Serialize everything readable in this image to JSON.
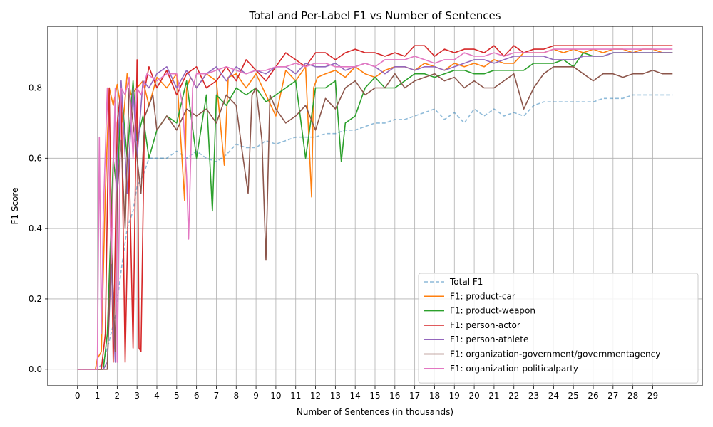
{
  "chart_data": {
    "type": "line",
    "title": "Total and Per-Label F1 vs Number of Sentences",
    "xlabel": "Number of Sentences (in thousands)",
    "ylabel": "F1 Score",
    "xlim": [
      -1.5,
      31.5
    ],
    "ylim": [
      -0.047,
      0.975
    ],
    "xticks": [
      0,
      1,
      2,
      3,
      4,
      5,
      6,
      7,
      8,
      9,
      10,
      11,
      12,
      13,
      14,
      15,
      16,
      17,
      18,
      19,
      20,
      21,
      22,
      23,
      24,
      25,
      26,
      27,
      28,
      29
    ],
    "yticks": [
      0.0,
      0.2,
      0.4,
      0.6,
      0.8
    ],
    "ytick_labels": [
      "0.0",
      "0.2",
      "0.4",
      "0.6",
      "0.8"
    ],
    "grid": true,
    "legend_position": "lower right",
    "series": [
      {
        "name": "Total F1",
        "color": "#1f77b4",
        "dashed": true,
        "opacity": 0.5,
        "x": [
          0,
          0.5,
          1,
          1.3,
          1.6,
          1.9,
          2.2,
          2.5,
          2.8,
          3.0,
          3.3,
          3.6,
          4,
          4.5,
          5,
          5.5,
          6,
          6.5,
          7,
          7.5,
          8,
          8.5,
          9,
          9.5,
          10,
          10.5,
          11,
          11.5,
          12,
          12.5,
          13,
          13.5,
          14,
          14.5,
          15,
          15.5,
          16,
          16.5,
          17,
          17.5,
          18,
          18.5,
          19,
          19.5,
          20,
          20.5,
          21,
          21.5,
          22,
          22.5,
          23,
          23.5,
          24,
          24.5,
          25,
          25.5,
          26,
          26.5,
          27,
          27.5,
          28,
          28.5,
          29,
          29.5,
          30
        ],
        "values": [
          0,
          0,
          0,
          0.02,
          0.08,
          0.15,
          0.28,
          0.4,
          0.45,
          0.52,
          0.55,
          0.6,
          0.6,
          0.6,
          0.62,
          0.6,
          0.62,
          0.6,
          0.59,
          0.61,
          0.64,
          0.63,
          0.63,
          0.65,
          0.64,
          0.65,
          0.66,
          0.66,
          0.66,
          0.67,
          0.67,
          0.68,
          0.68,
          0.69,
          0.7,
          0.7,
          0.71,
          0.71,
          0.72,
          0.73,
          0.74,
          0.71,
          0.73,
          0.7,
          0.74,
          0.72,
          0.74,
          0.72,
          0.73,
          0.72,
          0.75,
          0.76,
          0.76,
          0.76,
          0.76,
          0.76,
          0.76,
          0.77,
          0.77,
          0.77,
          0.78,
          0.78,
          0.78,
          0.78,
          0.78
        ]
      },
      {
        "name": "F1: product-car",
        "color": "#ff7f0e",
        "dashed": false,
        "opacity": 1,
        "x": [
          0,
          0.9,
          1.0,
          1.2,
          1.4,
          1.6,
          1.8,
          2.0,
          2.3,
          2.5,
          2.7,
          3.0,
          3.3,
          3.6,
          4,
          4.5,
          5,
          5.4,
          5.5,
          5.7,
          6,
          6.5,
          7,
          7.4,
          7.6,
          8,
          8.5,
          9,
          9.5,
          10,
          10.5,
          11,
          11.5,
          11.8,
          11.9,
          12.1,
          12.5,
          13,
          13.5,
          14,
          14.5,
          15,
          15.5,
          16,
          16.5,
          17,
          17.5,
          18,
          18.5,
          19,
          19.5,
          20,
          20.5,
          21,
          21.5,
          22,
          22.5,
          23,
          23.5,
          24,
          24.5,
          25,
          25.5,
          26,
          26.5,
          27,
          27.5,
          28,
          28.5,
          29,
          29.5,
          30
        ],
        "values": [
          0,
          0,
          0.03,
          0.05,
          0.5,
          0.8,
          0.75,
          0.81,
          0.7,
          0.84,
          0.78,
          0.8,
          0.82,
          0.75,
          0.83,
          0.8,
          0.84,
          0.48,
          0.8,
          0.83,
          0.8,
          0.84,
          0.82,
          0.58,
          0.83,
          0.84,
          0.8,
          0.84,
          0.78,
          0.72,
          0.85,
          0.82,
          0.86,
          0.49,
          0.8,
          0.83,
          0.84,
          0.85,
          0.83,
          0.86,
          0.84,
          0.83,
          0.85,
          0.86,
          0.86,
          0.85,
          0.87,
          0.86,
          0.85,
          0.87,
          0.86,
          0.87,
          0.86,
          0.88,
          0.87,
          0.87,
          0.9,
          0.9,
          0.9,
          0.91,
          0.9,
          0.91,
          0.9,
          0.91,
          0.9,
          0.91,
          0.91,
          0.9,
          0.91,
          0.91,
          0.9,
          0.9
        ]
      },
      {
        "name": "F1: product-weapon",
        "color": "#2ca02c",
        "dashed": false,
        "opacity": 1,
        "x": [
          0,
          1.3,
          1.5,
          1.8,
          2.0,
          2.2,
          2.5,
          2.8,
          3.0,
          3.3,
          3.6,
          4,
          4.5,
          5,
          5.5,
          6,
          6.5,
          6.8,
          7,
          7.5,
          8,
          8.5,
          9,
          9.5,
          10,
          10.5,
          11,
          11.5,
          12,
          12.5,
          13,
          13.3,
          13.5,
          14,
          14.5,
          15,
          15.5,
          16,
          16.5,
          17,
          17.5,
          18,
          18.5,
          19,
          19.5,
          20,
          20.5,
          21,
          21.5,
          22,
          22.5,
          23,
          23.5,
          24,
          24.5,
          25,
          25.5,
          26,
          26.5,
          27,
          27.5,
          28,
          28.5,
          29,
          29.5,
          30
        ],
        "values": [
          0,
          0,
          0.1,
          0.6,
          0.5,
          0.8,
          0.6,
          0.82,
          0.65,
          0.72,
          0.6,
          0.68,
          0.72,
          0.7,
          0.82,
          0.6,
          0.78,
          0.45,
          0.78,
          0.75,
          0.8,
          0.78,
          0.8,
          0.76,
          0.78,
          0.8,
          0.82,
          0.6,
          0.8,
          0.8,
          0.82,
          0.59,
          0.7,
          0.72,
          0.8,
          0.83,
          0.8,
          0.8,
          0.82,
          0.84,
          0.84,
          0.83,
          0.84,
          0.85,
          0.85,
          0.84,
          0.84,
          0.85,
          0.85,
          0.85,
          0.85,
          0.87,
          0.87,
          0.87,
          0.88,
          0.86,
          0.9,
          0.89,
          0.89,
          0.9,
          0.9,
          0.9,
          0.9,
          0.9,
          0.9,
          0.9
        ]
      },
      {
        "name": "F1: person-actor",
        "color": "#d62728",
        "dashed": false,
        "opacity": 1,
        "x": [
          0,
          1.0,
          1.2,
          1.4,
          1.6,
          1.8,
          2.0,
          2.2,
          2.4,
          2.6,
          2.8,
          3.0,
          3.1,
          3.2,
          3.4,
          3.6,
          4,
          4.5,
          5,
          5.5,
          6,
          6.5,
          7,
          7.5,
          8,
          8.5,
          9,
          9.5,
          10,
          10.5,
          11,
          11.5,
          12,
          12.5,
          13,
          13.5,
          14,
          14.5,
          15,
          15.5,
          16,
          16.5,
          17,
          17.5,
          18,
          18.5,
          19,
          19.5,
          20,
          20.5,
          21,
          21.5,
          22,
          22.5,
          23,
          23.5,
          24,
          24.5,
          25,
          25.5,
          26,
          26.5,
          27,
          27.5,
          28,
          28.5,
          29,
          29.5,
          30
        ],
        "values": [
          0,
          0,
          0,
          0.1,
          0.8,
          0.02,
          0.7,
          0.8,
          0.02,
          0.6,
          0.06,
          0.88,
          0.06,
          0.05,
          0.8,
          0.86,
          0.8,
          0.85,
          0.78,
          0.84,
          0.86,
          0.8,
          0.82,
          0.86,
          0.82,
          0.88,
          0.85,
          0.82,
          0.86,
          0.9,
          0.88,
          0.86,
          0.9,
          0.9,
          0.88,
          0.9,
          0.91,
          0.9,
          0.9,
          0.89,
          0.9,
          0.89,
          0.92,
          0.92,
          0.89,
          0.91,
          0.9,
          0.91,
          0.91,
          0.9,
          0.92,
          0.89,
          0.92,
          0.9,
          0.91,
          0.91,
          0.92,
          0.92,
          0.92,
          0.92,
          0.92,
          0.92,
          0.92,
          0.92,
          0.92,
          0.92,
          0.92,
          0.92,
          0.92
        ]
      },
      {
        "name": "F1: person-athlete",
        "color": "#9467bd",
        "dashed": false,
        "opacity": 1,
        "x": [
          0,
          1.3,
          1.5,
          1.7,
          1.9,
          2.0,
          2.2,
          2.5,
          2.8,
          3.0,
          3.3,
          3.6,
          4,
          4.5,
          5,
          5.5,
          6,
          6.5,
          7,
          7.5,
          8,
          8.5,
          9,
          9.5,
          10,
          10.5,
          11,
          11.5,
          12,
          12.5,
          13,
          13.5,
          14,
          14.5,
          15,
          15.5,
          16,
          16.5,
          17,
          17.5,
          18,
          18.5,
          19,
          19.5,
          20,
          20.5,
          21,
          21.5,
          22,
          22.5,
          23,
          23.5,
          24,
          24.5,
          25,
          25.5,
          26,
          26.5,
          27,
          27.5,
          28,
          28.5,
          29,
          29.5,
          30
        ],
        "values": [
          0,
          0,
          0.02,
          0.3,
          0.02,
          0.6,
          0.82,
          0.5,
          0.8,
          0.6,
          0.82,
          0.8,
          0.84,
          0.86,
          0.8,
          0.85,
          0.8,
          0.84,
          0.86,
          0.82,
          0.86,
          0.84,
          0.85,
          0.84,
          0.86,
          0.86,
          0.84,
          0.87,
          0.86,
          0.86,
          0.87,
          0.85,
          0.86,
          0.87,
          0.86,
          0.84,
          0.86,
          0.86,
          0.85,
          0.86,
          0.86,
          0.85,
          0.86,
          0.87,
          0.88,
          0.88,
          0.87,
          0.88,
          0.89,
          0.89,
          0.89,
          0.89,
          0.88,
          0.88,
          0.88,
          0.89,
          0.89,
          0.89,
          0.9,
          0.9,
          0.9,
          0.9,
          0.9,
          0.9,
          0.9
        ]
      },
      {
        "name": "F1: organization-government/governmentagency",
        "color": "#8c564b",
        "dashed": false,
        "opacity": 1,
        "x": [
          0,
          1.5,
          1.7,
          1.9,
          2.0,
          2.2,
          2.4,
          2.6,
          2.8,
          3.0,
          3.2,
          3.4,
          3.6,
          3.8,
          4,
          4.5,
          5,
          5.5,
          6,
          6.5,
          7,
          7.5,
          8,
          8.3,
          8.6,
          8.8,
          9,
          9.3,
          9.5,
          9.7,
          10,
          10.5,
          11,
          11.5,
          12,
          12.5,
          13,
          13.5,
          14,
          14.5,
          15,
          15.5,
          16,
          16.5,
          17,
          17.5,
          18,
          18.5,
          19,
          19.5,
          20,
          20.5,
          21,
          21.5,
          22,
          22.5,
          23,
          23.5,
          24,
          24.5,
          25,
          25.5,
          26,
          26.5,
          27,
          27.5,
          28,
          28.5,
          29,
          29.5,
          30
        ],
        "values": [
          0,
          0,
          0.37,
          0.05,
          0.5,
          0.65,
          0.4,
          0.8,
          0.7,
          0.6,
          0.5,
          0.72,
          0.75,
          0.78,
          0.68,
          0.72,
          0.68,
          0.74,
          0.72,
          0.74,
          0.7,
          0.78,
          0.75,
          0.62,
          0.5,
          0.78,
          0.8,
          0.65,
          0.31,
          0.78,
          0.74,
          0.7,
          0.72,
          0.75,
          0.68,
          0.77,
          0.74,
          0.8,
          0.82,
          0.78,
          0.8,
          0.8,
          0.84,
          0.8,
          0.82,
          0.83,
          0.84,
          0.82,
          0.83,
          0.8,
          0.82,
          0.8,
          0.8,
          0.82,
          0.84,
          0.74,
          0.8,
          0.84,
          0.86,
          0.86,
          0.86,
          0.84,
          0.82,
          0.84,
          0.84,
          0.83,
          0.84,
          0.84,
          0.85,
          0.84,
          0.84
        ]
      },
      {
        "name": "F1: organization-politicalparty",
        "color": "#e377c2",
        "dashed": false,
        "opacity": 1,
        "x": [
          0,
          1.0,
          1.1,
          1.2,
          1.3,
          1.5,
          1.7,
          1.9,
          2.0,
          2.2,
          2.4,
          2.6,
          2.8,
          3.0,
          3.2,
          3.5,
          4,
          4.5,
          5,
          5.3,
          5.5,
          5.6,
          5.8,
          6,
          6.5,
          7,
          7.5,
          8,
          8.5,
          9,
          9.5,
          10,
          10.5,
          11,
          11.5,
          12,
          12.5,
          13,
          13.5,
          14,
          14.5,
          15,
          15.5,
          16,
          16.5,
          17,
          17.5,
          18,
          18.5,
          19,
          19.5,
          20,
          20.5,
          21,
          21.5,
          22,
          22.5,
          23,
          23.5,
          24,
          24.5,
          25,
          25.5,
          26,
          26.5,
          27,
          27.5,
          28,
          28.5,
          29,
          29.5,
          30
        ],
        "values": [
          0,
          0,
          0.66,
          0.1,
          0.44,
          0.8,
          0.3,
          0.8,
          0.02,
          0.8,
          0.78,
          0.83,
          0.6,
          0.8,
          0.78,
          0.84,
          0.82,
          0.84,
          0.84,
          0.75,
          0.55,
          0.37,
          0.8,
          0.84,
          0.84,
          0.85,
          0.86,
          0.85,
          0.84,
          0.85,
          0.85,
          0.86,
          0.86,
          0.87,
          0.86,
          0.87,
          0.87,
          0.86,
          0.86,
          0.86,
          0.87,
          0.86,
          0.88,
          0.88,
          0.88,
          0.89,
          0.88,
          0.87,
          0.88,
          0.88,
          0.9,
          0.89,
          0.89,
          0.9,
          0.89,
          0.9,
          0.9,
          0.9,
          0.9,
          0.91,
          0.91,
          0.91,
          0.91,
          0.91,
          0.91,
          0.91,
          0.91,
          0.91,
          0.91,
          0.91,
          0.91,
          0.91
        ]
      }
    ]
  }
}
